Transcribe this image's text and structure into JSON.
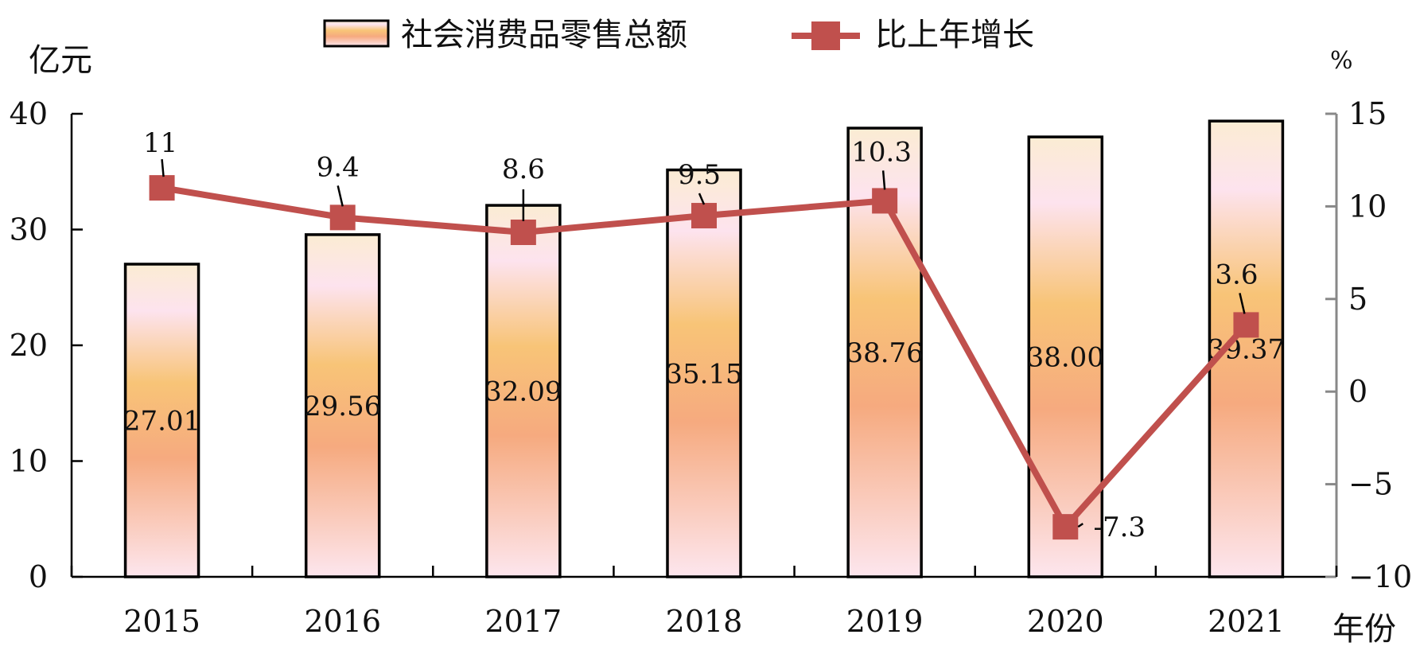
{
  "chart_data": {
    "type": "bar",
    "categories": [
      "2015",
      "2016",
      "2017",
      "2018",
      "2019",
      "2020",
      "2021"
    ],
    "series": [
      {
        "name": "社会消费品零售总额",
        "type": "bar",
        "axis": "left",
        "values": [
          27.01,
          29.56,
          32.09,
          35.15,
          38.76,
          38.0,
          39.37
        ],
        "labels": [
          "27.01",
          "29.56",
          "32.09",
          "35.15",
          "38.76",
          "38.00",
          "39.37"
        ]
      },
      {
        "name": "比上年增长",
        "type": "line",
        "axis": "right",
        "color": "#c0504d",
        "values": [
          11,
          9.4,
          8.6,
          9.5,
          10.3,
          -7.3,
          3.6
        ],
        "labels": [
          "11",
          "9.4",
          "8.6",
          "9.5",
          "10.3",
          "-7.3",
          "3.6"
        ]
      }
    ],
    "ylabel_left": "亿元",
    "ylabel_right": "%",
    "xlabel": "年份",
    "ylim_left": [
      0,
      40
    ],
    "yticks_left": [
      0,
      10,
      20,
      30,
      40
    ],
    "ylim_right": [
      -10,
      15
    ],
    "yticks_right": [
      "−10",
      "−5",
      "0",
      "5",
      "10",
      "15"
    ],
    "yticks_right_values": [
      -10,
      -5,
      0,
      5,
      10,
      15
    ],
    "legend_position": "top-center",
    "grid": false,
    "colors": {
      "bar_top": "#fbecd3",
      "bar_pink": "#fde3ee",
      "bar_mid": "#f8c477",
      "bar_low": "#f6aa7f",
      "bar_bottom": "#fde6ee",
      "line": "#c0504d",
      "right_axis": "#888888"
    }
  }
}
